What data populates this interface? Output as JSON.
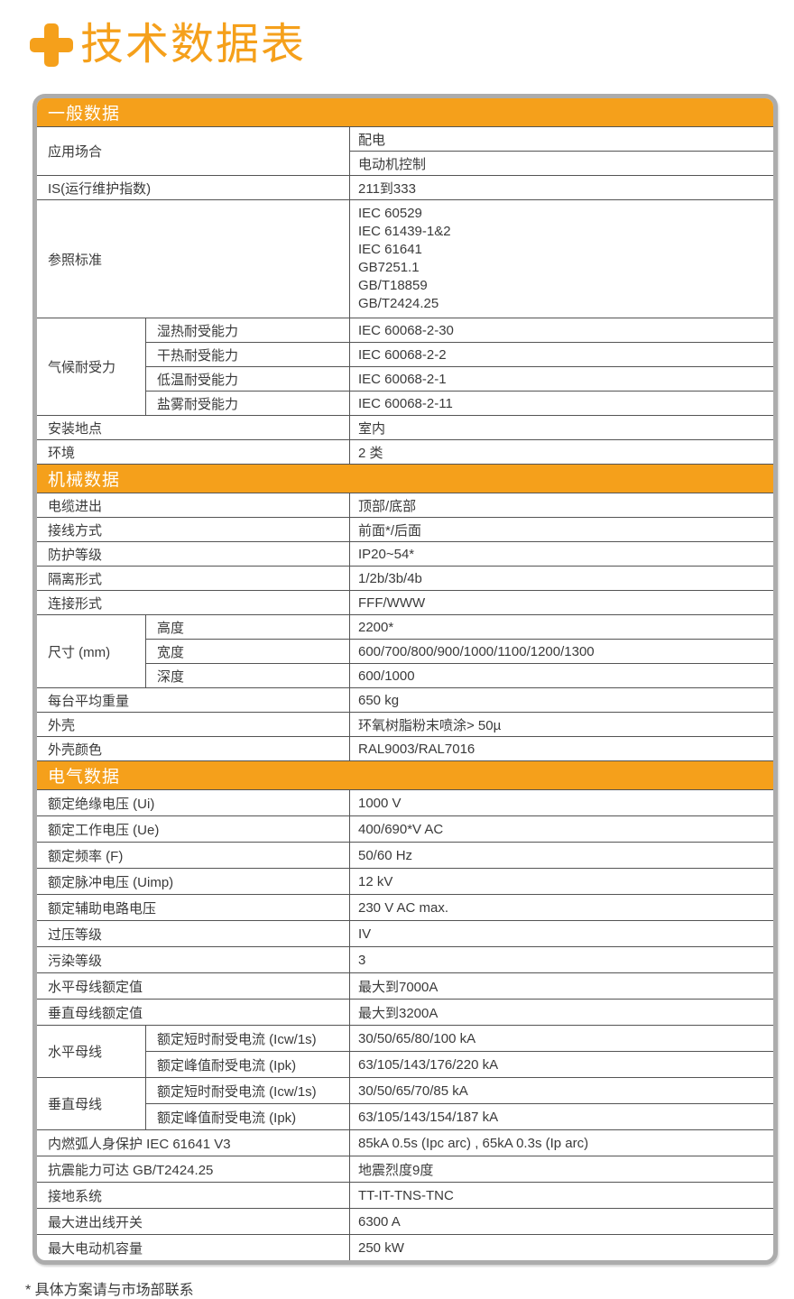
{
  "page": {
    "title": "技术数据表",
    "footnote": "* 具体方案请与市场部联系"
  },
  "colors": {
    "accent": "#f5a01b",
    "frame": "#acacac",
    "grid": "#545454",
    "text": "#3a3a3a"
  },
  "table": {
    "sections": [
      {
        "header": "一般数据",
        "rows": [
          {
            "label": "应用场合",
            "values": [
              "配电",
              "电动机控制"
            ]
          },
          {
            "label": "IS(运行维护指数)",
            "value": "211到333"
          },
          {
            "label": "参照标准",
            "value_lines": [
              "IEC 60529",
              "IEC 61439-1&2",
              "IEC 61641",
              "GB7251.1",
              "GB/T18859",
              "GB/T2424.25"
            ]
          },
          {
            "label": "气候耐受力",
            "subrows": [
              {
                "sublabel": "湿热耐受能力",
                "value": "IEC 60068-2-30"
              },
              {
                "sublabel": "干热耐受能力",
                "value": "IEC 60068-2-2"
              },
              {
                "sublabel": "低温耐受能力",
                "value": "IEC 60068-2-1"
              },
              {
                "sublabel": "盐雾耐受能力",
                "value": "IEC 60068-2-11"
              }
            ]
          },
          {
            "label": "安装地点",
            "value": "室内"
          },
          {
            "label": "环境",
            "value": "2 类"
          }
        ]
      },
      {
        "header": "机械数据",
        "rows": [
          {
            "label": "电缆进出",
            "value": "顶部/底部"
          },
          {
            "label": "接线方式",
            "value": "前面*/后面"
          },
          {
            "label": "防护等级",
            "value": "IP20~54*"
          },
          {
            "label": "隔离形式",
            "value": "1/2b/3b/4b"
          },
          {
            "label": "连接形式",
            "value": "FFF/WWW"
          },
          {
            "label": "尺寸 (mm)",
            "subrows": [
              {
                "sublabel": "高度",
                "value": "2200*"
              },
              {
                "sublabel": "宽度",
                "value": "600/700/800/900/1000/1100/1200/1300"
              },
              {
                "sublabel": "深度",
                "value": "600/1000"
              }
            ]
          },
          {
            "label": "每台平均重量",
            "value": "650 kg"
          },
          {
            "label": "外壳",
            "value": "环氧树脂粉末喷涂> 50µ"
          },
          {
            "label": "外壳颜色",
            "value": "RAL9003/RAL7016"
          }
        ]
      },
      {
        "header": "电气数据",
        "rows": [
          {
            "label": "额定绝缘电压 (Ui)",
            "value": "1000 V"
          },
          {
            "label": "额定工作电压 (Ue)",
            "value": "400/690*V AC"
          },
          {
            "label": "额定频率 (F)",
            "value": "50/60 Hz"
          },
          {
            "label": "额定脉冲电压 (Uimp)",
            "value": "12 kV"
          },
          {
            "label": "额定辅助电路电压",
            "value": "230 V AC max."
          },
          {
            "label": "过压等级",
            "value": "IV"
          },
          {
            "label": "污染等级",
            "value": "3"
          },
          {
            "label": "水平母线额定值",
            "value": "最大到7000A"
          },
          {
            "label": "垂直母线额定值",
            "value": "最大到3200A"
          },
          {
            "label": "水平母线",
            "subrows": [
              {
                "sublabel": "额定短时耐受电流  (Icw/1s)",
                "value": "30/50/65/80/100 kA"
              },
              {
                "sublabel": "额定峰值耐受电流 (Ipk)",
                "value": "63/105/143/176/220 kA"
              }
            ]
          },
          {
            "label": "垂直母线",
            "subrows": [
              {
                "sublabel": "额定短时耐受电流  (Icw/1s)",
                "value": "30/50/65/70/85 kA"
              },
              {
                "sublabel": "额定峰值耐受电流 (Ipk)",
                "value": "63/105/143/154/187 kA"
              }
            ]
          },
          {
            "label": "内燃弧人身保护 IEC 61641 V3",
            "value": "85kA 0.5s (Ipc arc) , 65kA 0.3s (Ip arc)"
          },
          {
            "label": "抗震能力可达 GB/T2424.25",
            "value": "地震烈度9度"
          },
          {
            "label": "接地系统",
            "value": "TT-IT-TNS-TNC"
          },
          {
            "label": "最大进出线开关",
            "value": "6300 A"
          },
          {
            "label": "最大电动机容量",
            "value": "250 kW"
          }
        ]
      }
    ]
  }
}
